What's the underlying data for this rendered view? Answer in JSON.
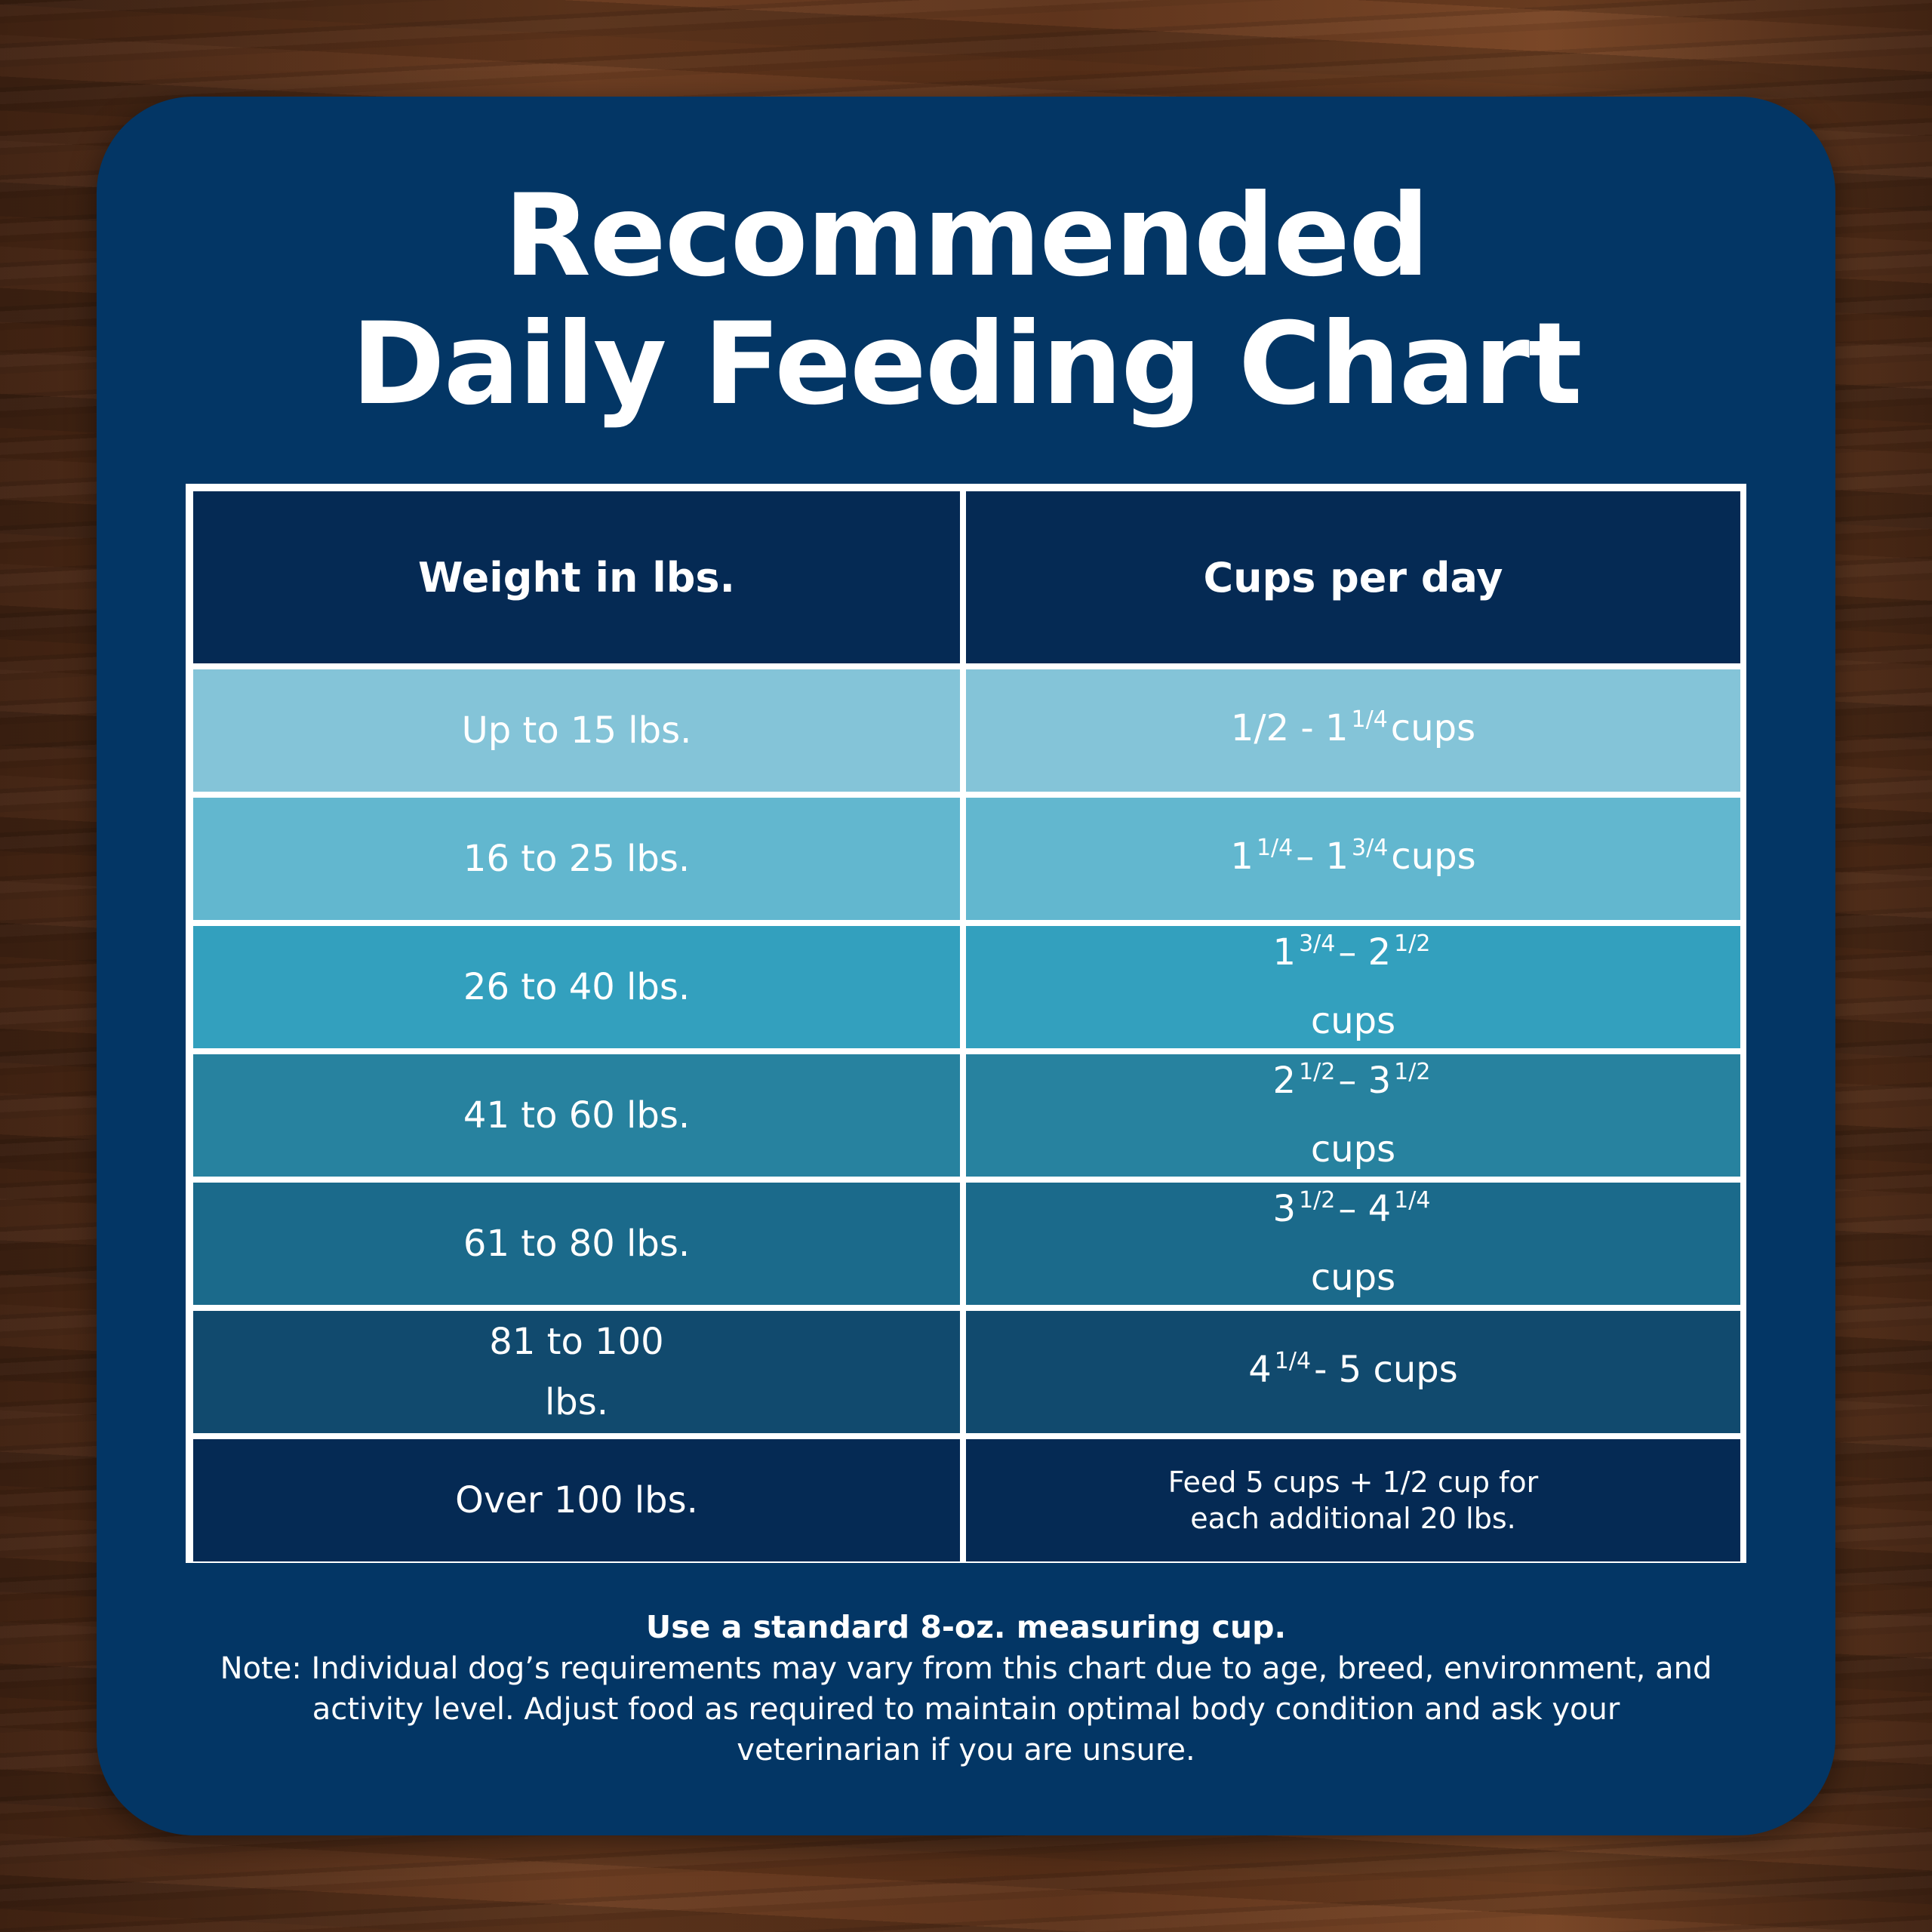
{
  "title_line1": "Recommended",
  "title_line2": "Daily Feeding Chart",
  "chart_data": {
    "type": "table",
    "columns": [
      "Weight in lbs.",
      "Cups per day"
    ],
    "rows": [
      {
        "weight": "Up to 15 lbs.",
        "cups": "1/2 - 1 1/4 cups",
        "color": "#84c4d8"
      },
      {
        "weight": "16 to 25 lbs.",
        "cups": "1 1/4 - 1 3/4 cups",
        "color": "#62b7cf"
      },
      {
        "weight": "26 to 40 lbs.",
        "cups": "1 3/4 - 2 1/2 cups",
        "color": "#33a0be"
      },
      {
        "weight": "41 to 60 lbs.",
        "cups": "2 1/2 - 3 1/2 cups",
        "color": "#27829f"
      },
      {
        "weight": "61 to 80 lbs.",
        "cups": "3 1/2 - 4 1/4 cups",
        "color": "#1b6a8b"
      },
      {
        "weight": "81 to 100 lbs.",
        "cups": "4 1/4 - 5 cups",
        "color": "#114a6e"
      },
      {
        "weight": "Over 100 lbs.",
        "cups": "Feed 5 cups + 1/2 cup for each additional 20 lbs.",
        "color": "#052a54"
      }
    ],
    "header_color": "#052a54"
  },
  "footer_bold": "Use a standard 8-oz. measuring cup.",
  "footer_note": "Note: Individual dog’s requirements may vary from this chart due to age, breed, environment, and activity level. Adjust food as required to maintain optimal body condition and ask your veterinarian if you are unsure.",
  "colors": {
    "card_background": "#033665",
    "grid_lines": "#ffffff",
    "text": "#ffffff"
  }
}
